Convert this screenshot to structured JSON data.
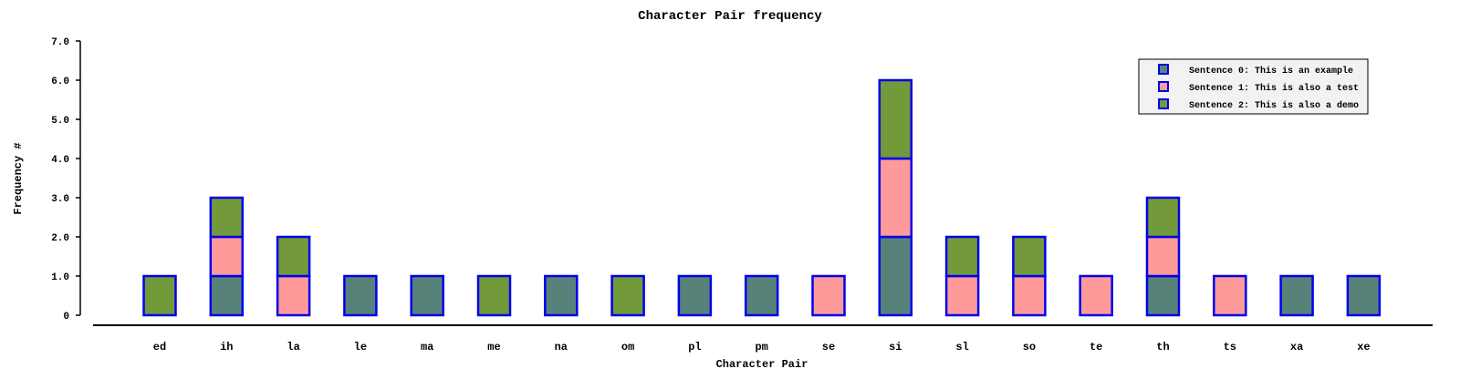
{
  "chart_data": {
    "type": "bar",
    "stacked": true,
    "title": "Character Pair frequency",
    "xlabel": "Character Pair",
    "ylabel": "Frequency #",
    "ylim": [
      0,
      7
    ],
    "yticks": [
      "0",
      "1.0",
      "2.0",
      "3.0",
      "4.0",
      "5.0",
      "6.0",
      "7.0"
    ],
    "categories": [
      "ed",
      "ih",
      "la",
      "le",
      "ma",
      "me",
      "na",
      "om",
      "pl",
      "pm",
      "se",
      "si",
      "sl",
      "so",
      "te",
      "th",
      "ts",
      "xa",
      "xe"
    ],
    "series": [
      {
        "name": "Sentence 0: This is an example",
        "color": "#588279",
        "values": [
          0,
          1,
          0,
          1,
          1,
          0,
          1,
          0,
          1,
          1,
          0,
          2,
          0,
          0,
          0,
          1,
          0,
          1,
          1
        ]
      },
      {
        "name": "Sentence 1:  This is also a test",
        "color": "#ff9a9a",
        "values": [
          0,
          1,
          1,
          0,
          0,
          0,
          0,
          0,
          0,
          0,
          1,
          2,
          1,
          1,
          1,
          1,
          1,
          0,
          0
        ]
      },
      {
        "name": "Sentence 2:  This is also a demo",
        "color": "#72993a",
        "values": [
          1,
          1,
          1,
          0,
          0,
          1,
          0,
          1,
          0,
          0,
          0,
          2,
          1,
          1,
          0,
          1,
          0,
          0,
          0
        ]
      }
    ],
    "bar_edge_color": "#0000ee",
    "grid": false,
    "legend_position": "top-right"
  }
}
